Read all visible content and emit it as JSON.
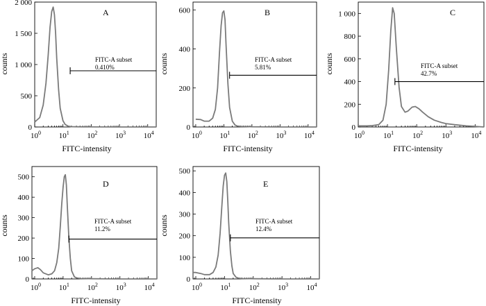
{
  "chart_data": [
    {
      "type": "line",
      "title": "A",
      "xlabel": "FITC-intensity",
      "ylabel": "counts",
      "x_scale": "log",
      "xlim": [
        1,
        20000
      ],
      "ylim": [
        0,
        2000
      ],
      "x_ticks": [
        1,
        10,
        100,
        1000,
        10000
      ],
      "x_tick_labels": [
        "10",
        "10",
        "10",
        "10",
        "10"
      ],
      "x_tick_exponents": [
        "0",
        "1",
        "2",
        "3",
        "4"
      ],
      "y_ticks": [
        0,
        500,
        1000,
        1500,
        2000
      ],
      "y_tick_labels": [
        "0",
        "500",
        "1 000",
        "1 500",
        "2 000"
      ],
      "gate": {
        "label": "FITC-A subset",
        "percent": "0.410%",
        "x_start": 18,
        "x_end": 20000,
        "y": 900
      },
      "series": [
        {
          "x": [
            1,
            1.5,
            2,
            2.5,
            3,
            3.5,
            4,
            4.5,
            5,
            5.5,
            6,
            7,
            8,
            10,
            12,
            15,
            20,
            30,
            50,
            100,
            1000,
            20000
          ],
          "y": [
            80,
            150,
            350,
            700,
            1150,
            1600,
            1850,
            1920,
            1800,
            1500,
            1100,
            600,
            300,
            100,
            40,
            15,
            5,
            3,
            2,
            1,
            0,
            0
          ]
        }
      ]
    },
    {
      "type": "line",
      "title": "B",
      "xlabel": "FITC-intensity",
      "ylabel": "counts",
      "x_scale": "log",
      "xlim": [
        0.8,
        20000
      ],
      "ylim": [
        0,
        640
      ],
      "x_ticks": [
        1,
        10,
        100,
        1000,
        10000
      ],
      "x_tick_labels": [
        "10",
        "10",
        "10",
        "10",
        "10"
      ],
      "x_tick_exponents": [
        "0",
        "1",
        "2",
        "3",
        "4"
      ],
      "y_ticks": [
        0,
        200,
        400,
        600
      ],
      "y_tick_labels": [
        "0",
        "200",
        "400",
        "600"
      ],
      "gate": {
        "label": "FITC-A subset",
        "percent": "5.81%",
        "x_start": 16,
        "x_end": 20000,
        "y": 265
      },
      "series": [
        {
          "x": [
            1,
            1.5,
            2,
            3,
            4,
            5,
            6,
            7,
            8,
            9,
            10,
            11,
            12,
            14,
            16,
            20,
            25,
            30,
            40,
            60,
            100,
            1000,
            20000
          ],
          "y": [
            40,
            38,
            30,
            30,
            45,
            90,
            200,
            380,
            520,
            585,
            595,
            550,
            420,
            220,
            100,
            30,
            10,
            5,
            3,
            2,
            1,
            0,
            0
          ]
        }
      ]
    },
    {
      "type": "line",
      "title": "C",
      "xlabel": "FITC-intensity",
      "ylabel": "counts",
      "x_scale": "log",
      "xlim": [
        1,
        20000
      ],
      "ylim": [
        0,
        1100
      ],
      "x_ticks": [
        1,
        10,
        100,
        1000,
        10000
      ],
      "x_tick_labels": [
        "10",
        "10",
        "10",
        "10",
        "10"
      ],
      "x_tick_exponents": [
        "0",
        "1",
        "2",
        "3",
        "4"
      ],
      "y_ticks": [
        0,
        200,
        400,
        600,
        800,
        1000
      ],
      "y_tick_labels": [
        "0",
        "200",
        "400",
        "600",
        "800",
        "1 000"
      ],
      "gate": {
        "label": "FITC-A subset",
        "percent": "42.7%",
        "x_start": 18,
        "x_end": 20000,
        "y": 400
      },
      "series": [
        {
          "x": [
            1,
            2,
            3,
            5,
            7,
            9,
            11,
            13,
            15,
            17,
            20,
            25,
            30,
            40,
            50,
            70,
            90,
            120,
            160,
            250,
            400,
            700,
            1000,
            2000,
            5000,
            10000,
            20000
          ],
          "y": [
            10,
            10,
            12,
            20,
            60,
            200,
            500,
            850,
            1050,
            1000,
            700,
            350,
            180,
            130,
            140,
            175,
            180,
            160,
            130,
            90,
            60,
            40,
            30,
            20,
            10,
            5,
            0
          ]
        }
      ]
    },
    {
      "type": "line",
      "title": "D",
      "xlabel": "FITC-intensity",
      "ylabel": "counts",
      "x_scale": "log",
      "xlim": [
        0.8,
        20000
      ],
      "ylim": [
        0,
        550
      ],
      "x_ticks": [
        1,
        10,
        100,
        1000,
        10000
      ],
      "x_tick_labels": [
        "10",
        "10",
        "10",
        "10",
        "10"
      ],
      "x_tick_exponents": [
        "0",
        "1",
        "2",
        "3",
        "4"
      ],
      "y_ticks": [
        0,
        100,
        200,
        300,
        400,
        500
      ],
      "y_tick_labels": [
        "0",
        "100",
        "200",
        "300",
        "400",
        "500"
      ],
      "gate": {
        "label": "FITC-A subset",
        "percent": "11.2%",
        "x_start": 16,
        "x_end": 20000,
        "y": 195
      },
      "series": [
        {
          "x": [
            0.8,
            1,
            1.3,
            1.6,
            2,
            3,
            4,
            5,
            6,
            7,
            8,
            9,
            10,
            11,
            12,
            13,
            14,
            16,
            18,
            20,
            25,
            30,
            40,
            100,
            1000,
            20000
          ],
          "y": [
            40,
            50,
            55,
            45,
            30,
            20,
            25,
            40,
            80,
            150,
            260,
            370,
            450,
            500,
            510,
            460,
            360,
            200,
            100,
            40,
            10,
            5,
            2,
            1,
            0,
            0
          ]
        }
      ]
    },
    {
      "type": "line",
      "title": "E",
      "xlabel": "FITC-intensity",
      "ylabel": "counts",
      "x_scale": "log",
      "xlim": [
        0.8,
        20000
      ],
      "ylim": [
        0,
        520
      ],
      "x_ticks": [
        1,
        10,
        100,
        1000,
        10000
      ],
      "x_tick_labels": [
        "10",
        "10",
        "10",
        "10",
        "10"
      ],
      "x_tick_exponents": [
        "0",
        "1",
        "2",
        "3",
        "4"
      ],
      "y_ticks": [
        0,
        100,
        200,
        300,
        400,
        500
      ],
      "y_tick_labels": [
        "0",
        "100",
        "200",
        "300",
        "400",
        "500"
      ],
      "gate": {
        "label": "FITC-A subset",
        "percent": "12.4%",
        "x_start": 16,
        "x_end": 20000,
        "y": 190
      },
      "series": [
        {
          "x": [
            0.8,
            1,
            1.5,
            2,
            3,
            4,
            5,
            6,
            7,
            8,
            9,
            10,
            11,
            12,
            13,
            14,
            16,
            18,
            20,
            25,
            30,
            40,
            100,
            1000,
            20000
          ],
          "y": [
            30,
            30,
            25,
            20,
            20,
            30,
            55,
            110,
            210,
            330,
            430,
            480,
            490,
            450,
            360,
            260,
            130,
            60,
            25,
            8,
            4,
            2,
            1,
            0,
            0
          ]
        }
      ]
    }
  ]
}
